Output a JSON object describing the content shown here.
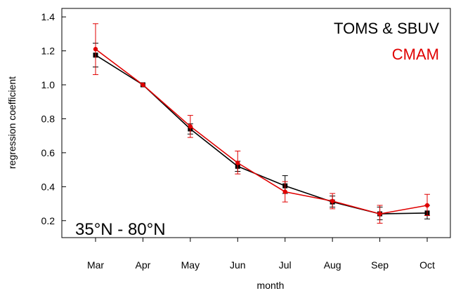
{
  "chart_data": {
    "type": "line",
    "categories": [
      "Mar",
      "Apr",
      "May",
      "Jun",
      "Jul",
      "Aug",
      "Sep",
      "Oct"
    ],
    "xlabel": "month",
    "ylabel": "regression coefficient",
    "ylim": [
      0.1,
      1.45
    ],
    "yticks": [
      "0.2",
      "0.4",
      "0.6",
      "0.8",
      "1.0",
      "1.2",
      "1.4"
    ],
    "annotation": "35°N - 80°N",
    "grid": false,
    "legend_position": "top-right",
    "series": [
      {
        "name": "TOMS & SBUV",
        "color": "#000000",
        "marker": "square",
        "values": [
          1.175,
          1.0,
          0.74,
          0.52,
          0.405,
          0.31,
          0.24,
          0.245
        ],
        "err_low": [
          0.07,
          0.0,
          0.03,
          0.03,
          0.045,
          0.03,
          0.035,
          0.035
        ],
        "err_high": [
          0.07,
          0.0,
          0.03,
          0.03,
          0.06,
          0.035,
          0.04,
          0.045
        ]
      },
      {
        "name": "CMAM",
        "color": "#e00000",
        "marker": "circle",
        "values": [
          1.21,
          1.0,
          0.755,
          0.54,
          0.37,
          0.315,
          0.24,
          0.29
        ],
        "err_low": [
          0.15,
          0.0,
          0.065,
          0.065,
          0.06,
          0.045,
          0.055,
          0.06
        ],
        "err_high": [
          0.15,
          0.0,
          0.065,
          0.07,
          0.06,
          0.045,
          0.05,
          0.065
        ]
      }
    ]
  }
}
